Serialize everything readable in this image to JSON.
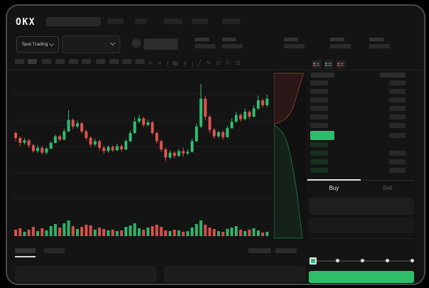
{
  "brand": {
    "logo": "OKX"
  },
  "header": {
    "nav_item_count": 5,
    "search_placeholder": ""
  },
  "subheader": {
    "market_selector_label": "Spot Trading",
    "stat_group_count": 5
  },
  "chart_toolbar": {
    "timeframe_slot_count": 10,
    "active_slot_index": 1,
    "icons": [
      "indicators-icon",
      "chevron-down-icon",
      "divider",
      "interval-icon",
      "chevron-down-icon",
      "divider",
      "trendline-icon",
      "draw-icon",
      "camera-icon",
      "refresh-icon",
      "fullscreen-icon"
    ]
  },
  "order_book": {
    "view_modes": [
      "combined-book-icon",
      "bids-only-icon",
      "asks-only-icon"
    ],
    "ask_row_count": 6,
    "bid_row_count": 4,
    "price_highlight_side": "buy"
  },
  "trade_panel": {
    "buy_tab_label": "Buy",
    "sell_tab_label": "Sell",
    "input_box_count": 2,
    "slider_stop_count": 5,
    "slider_value_index": 0
  },
  "bottom_bar": {
    "tab_count": 2,
    "right_placeholder_count": 2,
    "panel_count": 2
  },
  "colors": {
    "up": "#2ebd70",
    "down": "#e0524e",
    "accent_button": "#2ebd69",
    "price_highlight": "#2ebd6e",
    "background": "#141414",
    "window_border": "#4a4a4a",
    "grid": "#1e1e1e"
  },
  "chart_data": {
    "type": "candlestick",
    "title": "",
    "xlabel": "",
    "ylabel": "",
    "axis_labels_visible": false,
    "price_unit_range": [
      44,
      94
    ],
    "candles": [
      [
        63,
        60,
        64,
        58
      ],
      [
        60,
        57,
        61,
        55
      ],
      [
        57,
        58.5,
        60,
        56
      ],
      [
        58.5,
        55.5,
        59.5,
        54
      ],
      [
        55.5,
        52,
        56.5,
        51
      ],
      [
        52,
        54,
        55.5,
        51
      ],
      [
        54,
        51,
        55,
        50
      ],
      [
        51,
        53.5,
        54.5,
        50
      ],
      [
        53.5,
        57,
        58,
        53
      ],
      [
        57,
        61,
        62,
        56.5
      ],
      [
        61,
        59,
        62,
        58
      ],
      [
        59,
        64,
        65.5,
        58.5
      ],
      [
        64,
        71,
        77,
        63.5
      ],
      [
        71,
        67,
        72,
        65.5
      ],
      [
        67,
        69,
        70.5,
        66
      ],
      [
        69,
        64,
        70,
        63
      ],
      [
        64,
        60,
        65,
        58.5
      ],
      [
        60,
        56,
        61,
        54.5
      ],
      [
        56,
        58,
        59.5,
        55
      ],
      [
        58,
        54,
        59,
        52.5
      ],
      [
        54,
        52,
        55,
        50.5
      ],
      [
        52,
        54.5,
        55.5,
        51
      ],
      [
        54.5,
        52.5,
        55.5,
        51.5
      ],
      [
        52.5,
        55,
        56.5,
        52
      ],
      [
        55,
        53,
        56,
        51.5
      ],
      [
        53,
        58,
        59,
        52.5
      ],
      [
        58,
        63,
        64.5,
        57.5
      ],
      [
        63,
        70,
        72.5,
        62.5
      ],
      [
        70,
        72,
        74,
        69
      ],
      [
        72,
        68,
        73,
        66.5
      ],
      [
        68,
        69.5,
        71,
        67
      ],
      [
        69.5,
        63,
        70.5,
        62
      ],
      [
        63,
        58,
        64,
        56.5
      ],
      [
        58,
        53,
        59,
        51.5
      ],
      [
        53,
        48,
        54,
        46
      ],
      [
        48,
        51,
        52.5,
        47
      ],
      [
        51,
        49,
        52,
        47.5
      ],
      [
        49,
        52,
        53,
        48.5
      ],
      [
        52,
        50.5,
        54,
        48.5
      ],
      [
        50.5,
        51.5,
        53,
        49.5
      ],
      [
        51.5,
        58,
        59.5,
        51
      ],
      [
        58,
        67,
        69,
        57.5
      ],
      [
        67,
        84,
        93,
        66
      ],
      [
        84,
        73,
        85.5,
        71
      ],
      [
        73,
        65,
        74,
        63
      ],
      [
        65,
        61,
        66,
        59.5
      ],
      [
        61,
        63.5,
        64.5,
        60
      ],
      [
        63.5,
        60.5,
        64.5,
        59
      ],
      [
        60.5,
        66,
        67.5,
        60
      ],
      [
        66,
        70,
        72,
        65.5
      ],
      [
        70,
        74,
        76,
        69
      ],
      [
        74,
        71.5,
        75,
        70
      ],
      [
        71.5,
        76,
        78,
        71
      ],
      [
        76,
        73,
        77,
        71.5
      ],
      [
        73,
        78,
        80,
        72.5
      ],
      [
        78,
        83,
        86,
        77
      ],
      [
        83,
        80,
        84,
        78.5
      ],
      [
        80,
        84,
        86.5,
        79
      ]
    ],
    "candle_format": [
      "open",
      "close",
      "high",
      "low"
    ],
    "volumes": [
      9,
      11,
      6,
      9,
      13,
      7,
      11,
      8,
      14,
      17,
      12,
      18,
      22,
      14,
      10,
      13,
      16,
      15,
      9,
      12,
      10,
      8,
      9,
      7,
      8,
      13,
      15,
      18,
      11,
      9,
      12,
      14,
      16,
      13,
      8,
      7,
      9,
      8,
      6,
      7,
      12,
      17,
      22,
      16,
      12,
      10,
      7,
      6,
      10,
      12,
      14,
      9,
      7,
      9,
      11,
      8,
      5,
      6
    ],
    "grid": true,
    "depth_preview": {
      "asks_color": "#e0524e",
      "bids_color": "#2ebd70"
    }
  }
}
